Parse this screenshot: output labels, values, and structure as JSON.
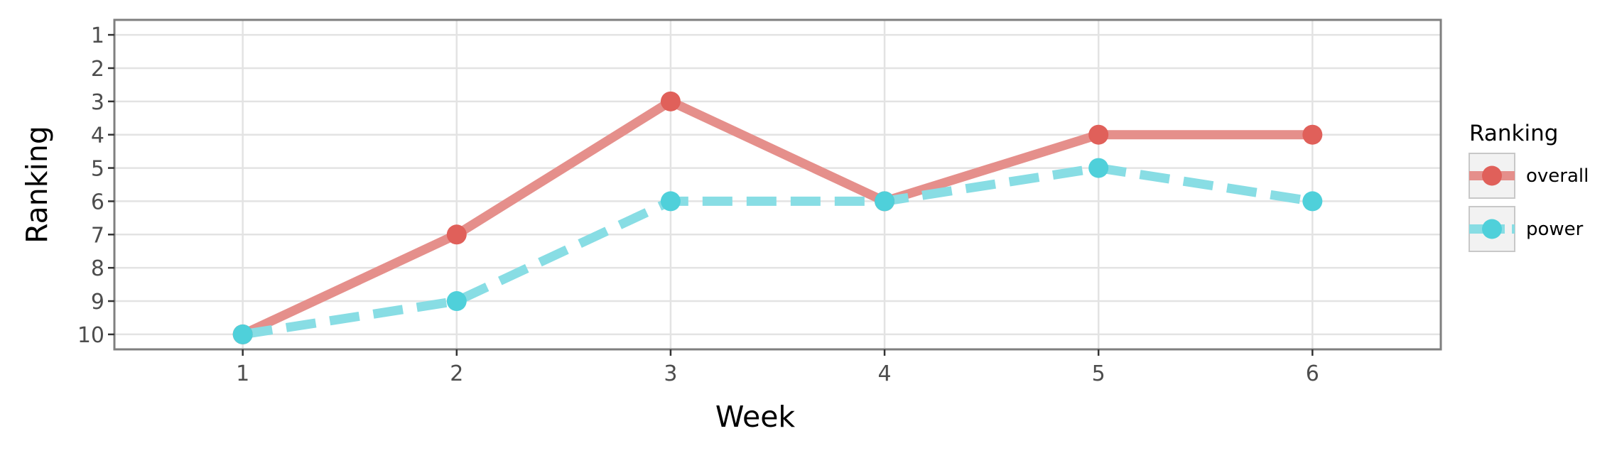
{
  "chart_data": {
    "type": "line",
    "title": "",
    "xlabel": "Week",
    "ylabel": "Ranking",
    "x": [
      1,
      2,
      3,
      4,
      5,
      6
    ],
    "x_ticks": [
      "1",
      "2",
      "3",
      "4",
      "5",
      "6"
    ],
    "xlim": [
      0.4,
      6.6
    ],
    "y_ticks": [
      "1",
      "2",
      "3",
      "4",
      "5",
      "6",
      "7",
      "8",
      "9",
      "10"
    ],
    "ylim": [
      0.55,
      10.45
    ],
    "y_reversed": true,
    "grid": true,
    "legend": {
      "title": "Ranking",
      "placement": "right"
    },
    "series": [
      {
        "name": "overall",
        "values": [
          10,
          7,
          3,
          6,
          4,
          4
        ],
        "color": "#e0605a",
        "line_color": "#e58f8b",
        "line_style": "solid"
      },
      {
        "name": "power",
        "values": [
          10,
          9,
          6,
          6,
          5,
          6
        ],
        "color": "#4fd0da",
        "line_color": "#88dde4",
        "line_style": "dashed"
      }
    ]
  }
}
